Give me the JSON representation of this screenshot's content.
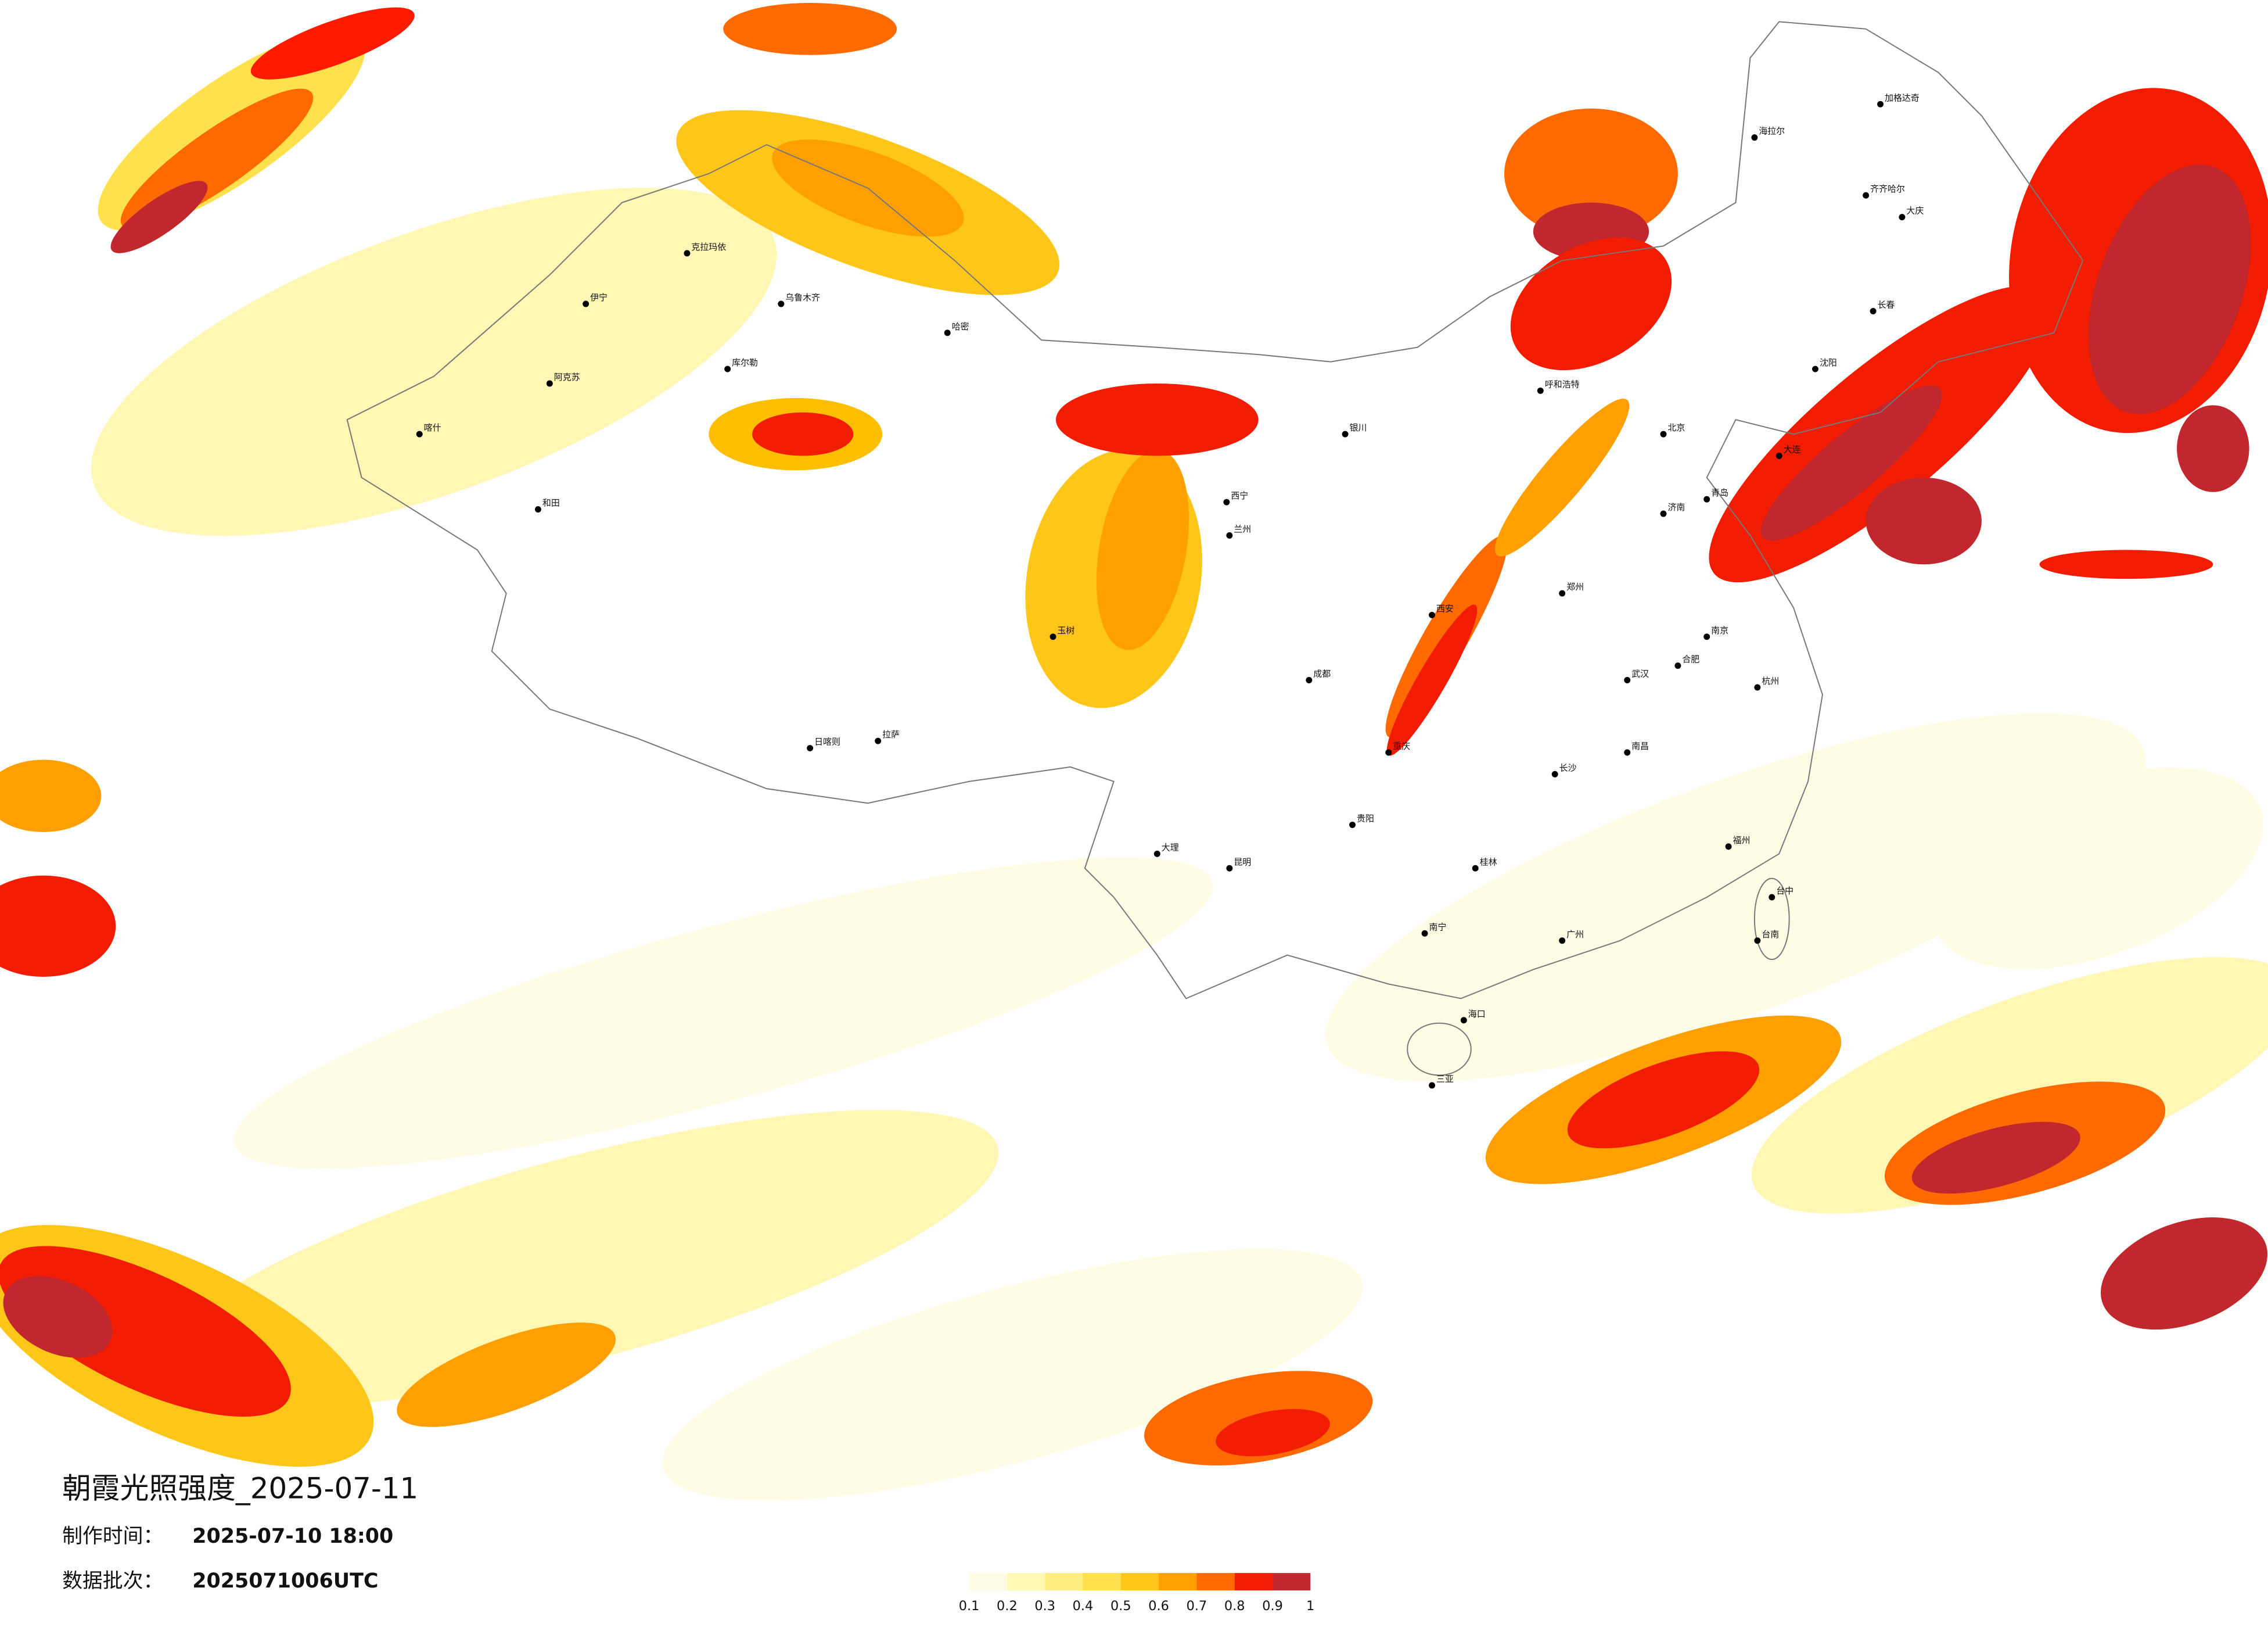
{
  "title": "朝霞光照强度_2025-07-11",
  "production_time": {
    "label": "制作时间：",
    "value": "2025-07-10 18:00"
  },
  "batch": {
    "label": "数据批次：",
    "value": "2025071006UTC"
  },
  "legend": {
    "ticks": [
      0.1,
      0.2,
      0.3,
      0.4,
      0.5,
      0.6,
      0.7,
      0.8,
      0.9,
      1
    ],
    "colors": [
      "#fffce6",
      "#fff7b3",
      "#ffef80",
      "#ffe04d",
      "#ffc61a",
      "#ff9f00",
      "#ff6a00",
      "#f21d00",
      "#c0282d"
    ]
  },
  "cities": [
    "克拉玛依",
    "伊宁",
    "乌鲁木齐",
    "库尔勒",
    "阿克苏",
    "喀什",
    "和田",
    "哈密",
    "日喀则",
    "拉萨",
    "玉树",
    "西宁",
    "兰州",
    "银川",
    "呼和浩特",
    "北京",
    "海拉尔",
    "加格达奇",
    "齐齐哈尔",
    "大庆",
    "长春",
    "沈阳",
    "大连",
    "济南",
    "青岛",
    "郑州",
    "西安",
    "成都",
    "重庆",
    "贵阳",
    "昆明",
    "大理",
    "南宁",
    "桂林",
    "长沙",
    "武汉",
    "南昌",
    "合肥",
    "南京",
    "杭州",
    "福州",
    "广州",
    "台中",
    "台南",
    "海口",
    "三亚"
  ]
}
